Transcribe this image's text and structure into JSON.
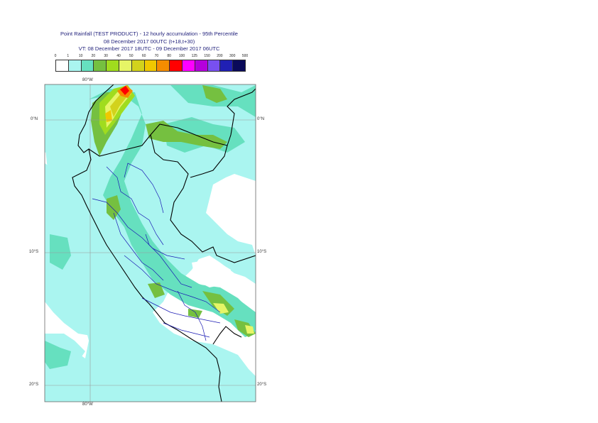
{
  "title": {
    "line1": "Point Rainfall (TEST PRODUCT) - 12 hourly accumulation - 95th Percentile",
    "line2": "08 December 2017 00UTC (t+18,t+30)",
    "line3": "VT: 08 December 2017 18UTC - 09 December 2017 06UTC"
  },
  "legend": {
    "thresholds": [
      "0",
      "1",
      "10",
      "20",
      "30",
      "40",
      "50",
      "60",
      "70",
      "80",
      "100",
      "125",
      "150",
      "200",
      "300",
      "500"
    ],
    "colors": [
      "#ffffff",
      "#aaf5f0",
      "#66e0bf",
      "#75c040",
      "#a0dc1e",
      "#e6f566",
      "#d2d21c",
      "#f0c800",
      "#f58c00",
      "#ff0000",
      "#ff00ff",
      "#b400dc",
      "#7850f0",
      "#2020b4",
      "#0a0a5a"
    ]
  },
  "axes": {
    "lon_top": "80°W",
    "lon_bottom": "80°W",
    "lat_right_0": "0°N",
    "lat_left_0": "0°N",
    "lat_right_10": "10°S",
    "lat_left_10": "10°S",
    "lat_right_20": "20°S",
    "lat_left_20": "20°S"
  }
}
